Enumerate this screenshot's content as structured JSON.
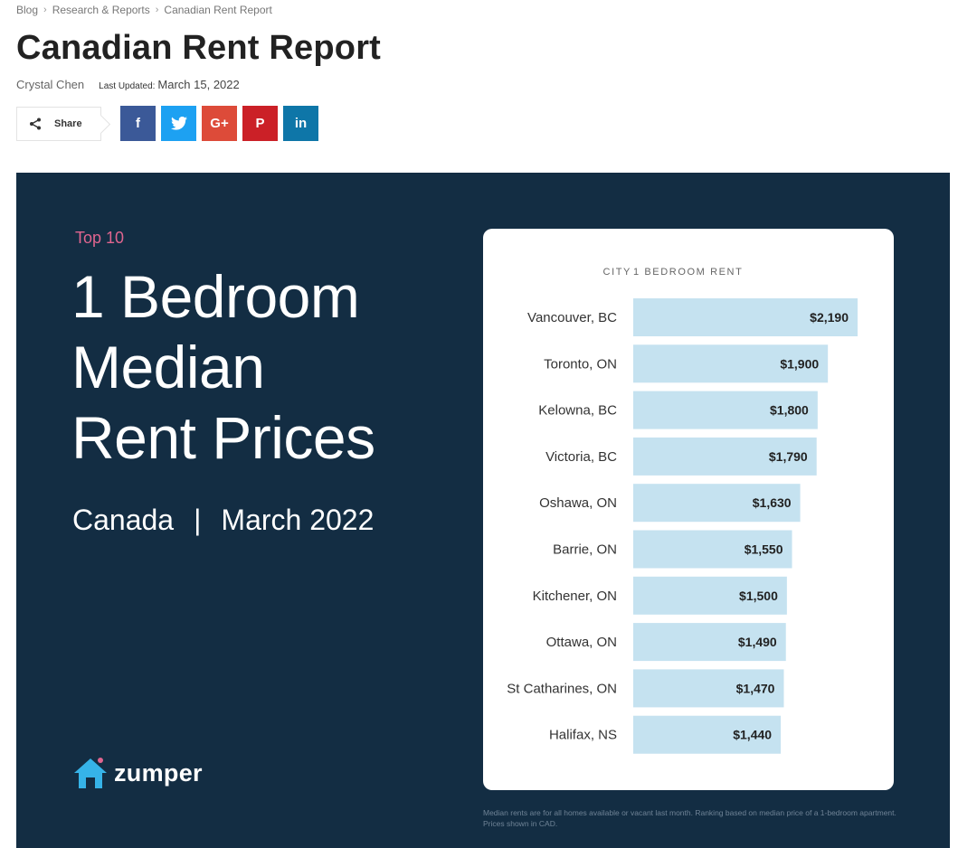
{
  "breadcrumb": {
    "items": [
      "Blog",
      "Research & Reports",
      "Canadian Rent Report"
    ],
    "separator": "›"
  },
  "article": {
    "title": "Canadian Rent Report",
    "author": "Crystal Chen",
    "updated_label": "Last Updated:",
    "updated_date": "March 15, 2022"
  },
  "share": {
    "label": "Share",
    "buttons": [
      {
        "name": "facebook",
        "glyph": "f",
        "color": "#3b5998"
      },
      {
        "name": "twitter",
        "glyph": "t",
        "color": "#1da1f2"
      },
      {
        "name": "google-plus",
        "glyph": "G+",
        "color": "#dd4b39"
      },
      {
        "name": "pinterest",
        "glyph": "P",
        "color": "#cb2027"
      },
      {
        "name": "linkedin",
        "glyph": "in",
        "color": "#0e76a8"
      }
    ]
  },
  "infographic": {
    "eyebrow": "Top 10",
    "headline": [
      "1 Bedroom",
      "Median",
      "Rent Prices"
    ],
    "region": "Canada",
    "divider": "|",
    "period": "March 2022",
    "brand": "zumper",
    "footnote": "Median rents are for all homes available or vacant last month. Ranking based on median price of a 1-bedroom apartment. Prices shown in CAD.",
    "colors": {
      "background": "#132d43",
      "eyebrow": "#e0658f",
      "bar": "#c5e2f0",
      "brand_icon": "#36b3e8"
    }
  },
  "chart_data": {
    "type": "bar",
    "orientation": "horizontal",
    "column_headers": [
      "CITY",
      "1 BEDROOM RENT"
    ],
    "categories": [
      "Vancouver, BC",
      "Toronto, ON",
      "Kelowna, BC",
      "Victoria, BC",
      "Oshawa, ON",
      "Barrie, ON",
      "Kitchener, ON",
      "Ottawa, ON",
      "St Catharines, ON",
      "Halifax, NS"
    ],
    "values": [
      2190,
      1900,
      1800,
      1790,
      1630,
      1550,
      1500,
      1490,
      1470,
      1440
    ],
    "value_labels": [
      "$2,190",
      "$1,900",
      "$1,800",
      "$1,790",
      "$1,630",
      "$1,550",
      "$1,500",
      "$1,490",
      "$1,470",
      "$1,440"
    ],
    "title": "",
    "xlabel": "",
    "ylabel": "",
    "grid": false,
    "legend": "none"
  }
}
